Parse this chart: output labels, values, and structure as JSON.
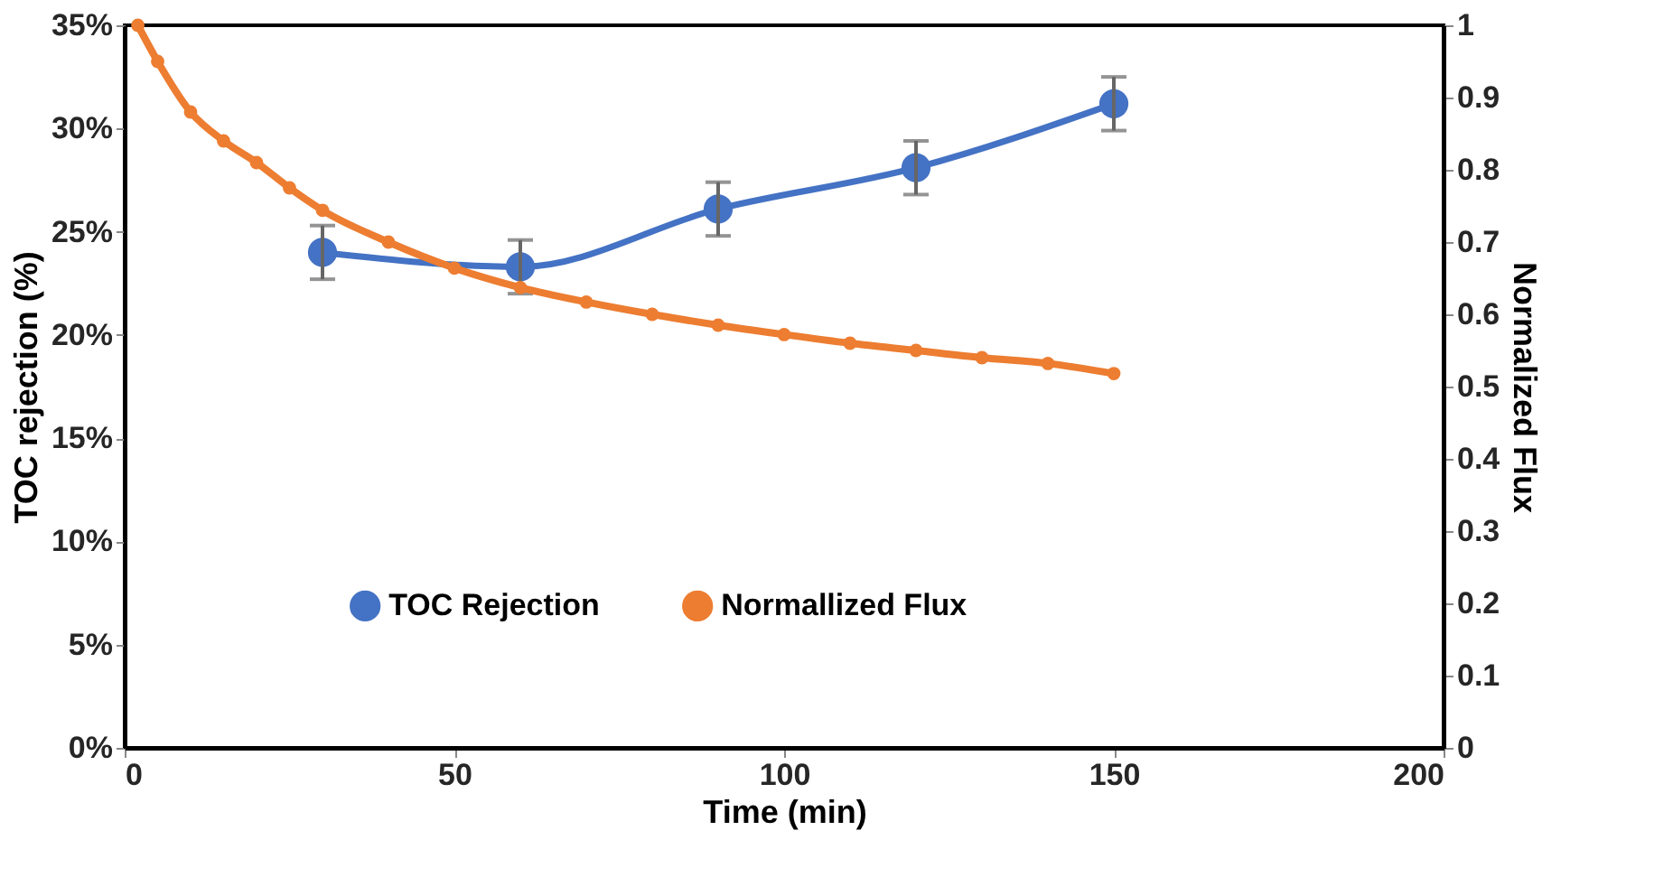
{
  "chart_data": {
    "type": "line",
    "xlabel": "Time (min)",
    "ylabel": "TOC rejection  (%)",
    "y2label": "Normalized Flux",
    "xlim": [
      0,
      200
    ],
    "xticks": [
      0,
      50,
      100,
      150,
      200
    ],
    "ylim": [
      0,
      35
    ],
    "yticks": [
      {
        "value": 0,
        "label": "0%"
      },
      {
        "value": 5,
        "label": "5%"
      },
      {
        "value": 10,
        "label": "10%"
      },
      {
        "value": 15,
        "label": "15%"
      },
      {
        "value": 20,
        "label": "20%"
      },
      {
        "value": 25,
        "label": "25%"
      },
      {
        "value": 30,
        "label": "30%"
      },
      {
        "value": 35,
        "label": "35%"
      }
    ],
    "y2lim": [
      0,
      1
    ],
    "y2ticks": [
      0,
      0.1,
      0.2,
      0.3,
      0.4,
      0.5,
      0.6,
      0.7,
      0.8,
      0.9,
      1
    ],
    "grid": false,
    "legend": "bottom",
    "series": [
      {
        "name": "TOC Rejection",
        "color": "#4472c4",
        "marker": "circle",
        "x": [
          30,
          60,
          90,
          120,
          150
        ],
        "values": [
          24.0,
          23.3,
          26.1,
          28.1,
          31.2
        ],
        "errors": [
          1.3,
          1.3,
          1.3,
          1.3,
          1.3
        ]
      },
      {
        "name": "Normallized Flux",
        "color": "#ed7d31",
        "marker": "circle",
        "axis": "y2",
        "x": [
          2,
          5,
          10,
          15,
          20,
          25,
          30,
          40,
          50,
          60,
          70,
          80,
          90,
          100,
          110,
          120,
          130,
          140,
          150
        ],
        "values": [
          1.0,
          0.95,
          0.88,
          0.84,
          0.81,
          0.775,
          0.744,
          0.7,
          0.664,
          0.637,
          0.617,
          0.6,
          0.585,
          0.572,
          0.56,
          0.55,
          0.54,
          0.532,
          0.518
        ]
      }
    ]
  }
}
